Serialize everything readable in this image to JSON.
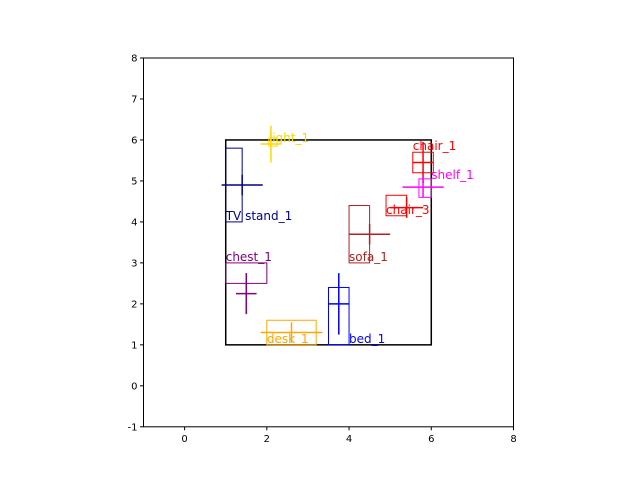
{
  "chart_data": {
    "type": "scatter",
    "title": "",
    "xlabel": "",
    "ylabel": "",
    "xlim": [
      -1,
      8
    ],
    "ylim": [
      -1,
      8
    ],
    "xticks": [
      "0",
      "2",
      "4",
      "6",
      "8"
    ],
    "xtick_values": [
      0,
      2,
      4,
      6,
      8
    ],
    "yticks": [
      "-1",
      "0",
      "1",
      "2",
      "3",
      "4",
      "5",
      "6",
      "7",
      "8"
    ],
    "ytick_values": [
      -1,
      0,
      1,
      2,
      3,
      4,
      5,
      6,
      7,
      8
    ],
    "grid": false,
    "room": {
      "x0": 1,
      "y0": 1,
      "x1": 6,
      "y1": 6,
      "color": "#000000"
    },
    "objects": [
      {
        "label": "light_1",
        "color": "#ffd700",
        "box": [
          2.05,
          5.85,
          2.25,
          6.05
        ],
        "center": [
          2.1,
          5.9
        ],
        "dir": [
          0,
          1
        ],
        "len": 0.9,
        "label_pos": [
          2.05,
          5.9
        ]
      },
      {
        "label": "chair_1",
        "color": "#ff0000",
        "box": [
          5.55,
          5.2,
          6.05,
          5.7
        ],
        "center": [
          5.8,
          5.45
        ],
        "dir": [
          0,
          -1
        ],
        "len": 1.0,
        "label_pos": [
          5.55,
          5.7
        ]
      },
      {
        "label": "shelf_1",
        "color": "#ff00ff",
        "box": [
          5.7,
          4.6,
          6.0,
          5.05
        ],
        "center": [
          5.8,
          4.85
        ],
        "dir": [
          -1,
          0
        ],
        "len": 1.0,
        "label_pos": [
          6.0,
          5.0
        ]
      },
      {
        "label": "TV stand_1",
        "color": "#00008b",
        "box": [
          1.0,
          4.0,
          1.4,
          5.8
        ],
        "center": [
          1.4,
          4.9
        ],
        "dir": [
          1,
          0
        ],
        "len": 1.0,
        "label_pos": [
          1.0,
          4.0
        ]
      },
      {
        "label": "chair_3",
        "color": "#ff0000",
        "box": [
          4.9,
          4.15,
          5.4,
          4.65
        ],
        "center": [
          5.4,
          4.35
        ],
        "dir": [
          1,
          0
        ],
        "len": 0.8,
        "label_pos": [
          4.9,
          4.15
        ]
      },
      {
        "label": "sofa_1",
        "color": "#b22222",
        "box": [
          4.0,
          3.0,
          4.5,
          4.4
        ],
        "center": [
          4.5,
          3.7
        ],
        "dir": [
          1,
          0
        ],
        "len": 1.0,
        "label_pos": [
          4.0,
          3.0
        ]
      },
      {
        "label": "chest_1",
        "color": "#800080",
        "box": [
          1.0,
          2.5,
          2.0,
          3.0
        ],
        "center": [
          1.5,
          2.25
        ],
        "dir": [
          0,
          -1
        ],
        "len": 1.0,
        "label_pos": [
          1.0,
          3.0
        ]
      },
      {
        "label": "bed_1",
        "color": "#0000ff",
        "box": [
          3.5,
          1.0,
          4.0,
          2.4
        ],
        "center": [
          3.75,
          2.0
        ],
        "dir": [
          0,
          1
        ],
        "len": 1.5,
        "label_pos": [
          4.0,
          1.0
        ]
      },
      {
        "label": "desk_1",
        "color": "#ffa500",
        "box": [
          2.0,
          1.0,
          3.2,
          1.6
        ],
        "center": [
          2.6,
          1.3
        ],
        "dir": [
          1,
          0
        ],
        "len": 1.5,
        "label_pos": [
          2.0,
          1.0
        ]
      }
    ]
  }
}
